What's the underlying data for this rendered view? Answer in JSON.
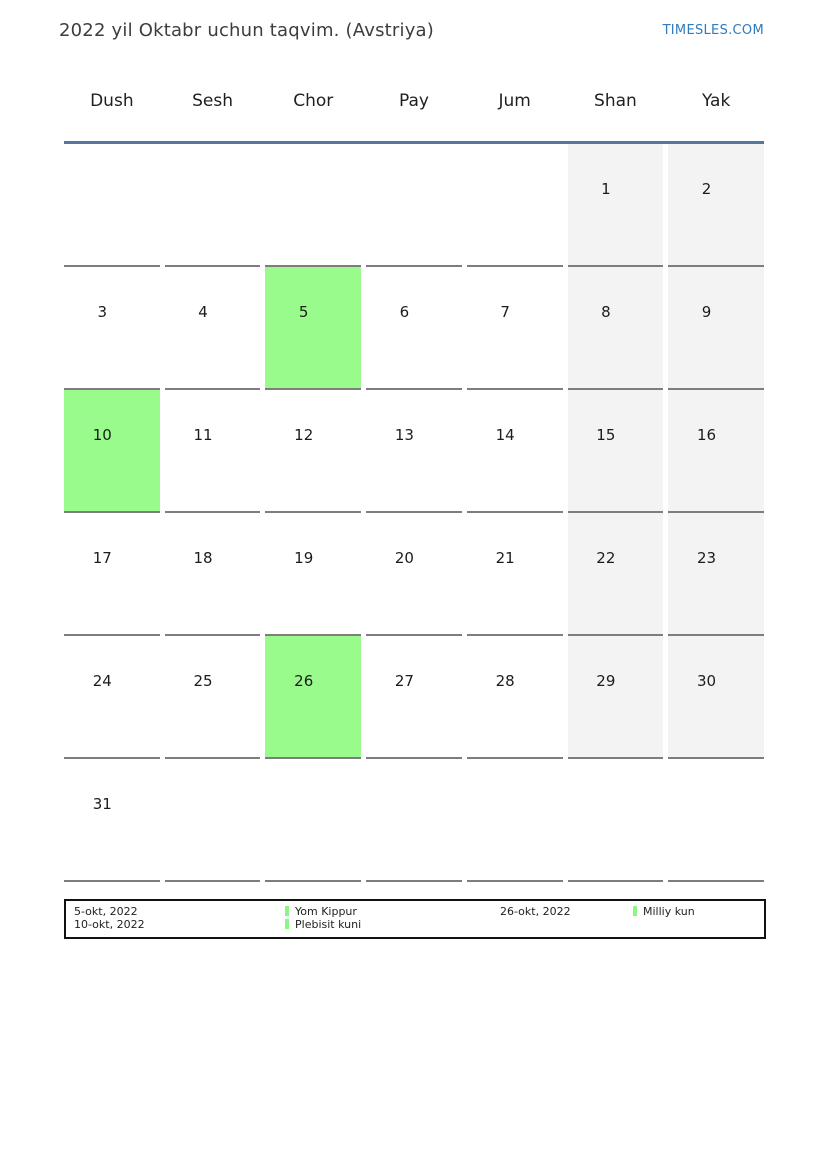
{
  "page": {
    "title": "2022 yil Oktabr uchun taqvim. (Avstriya)",
    "site_link": "TIMESLES.COM"
  },
  "calendar": {
    "weekdays": [
      "Dush",
      "Sesh",
      "Chor",
      "Pay",
      "Jum",
      "Shan",
      "Yak"
    ],
    "weeks": [
      [
        "",
        "",
        "",
        "",
        "",
        "1",
        "2"
      ],
      [
        "3",
        "4",
        "5",
        "6",
        "7",
        "8",
        "9"
      ],
      [
        "10",
        "11",
        "12",
        "13",
        "14",
        "15",
        "16"
      ],
      [
        "17",
        "18",
        "19",
        "20",
        "21",
        "22",
        "23"
      ],
      [
        "24",
        "25",
        "26",
        "27",
        "28",
        "29",
        "30"
      ],
      [
        "31",
        "",
        "",
        "",
        "",
        "",
        ""
      ]
    ],
    "highlighted_days": [
      "5",
      "10",
      "26"
    ],
    "weekend_columns": [
      "Shan",
      "Yak"
    ],
    "colors": {
      "highlight_green": "#98fb8c",
      "weekend_gray": "#f3f3f3",
      "header_line_blue": "#54779e",
      "cell_line_gray": "#7d7d7d",
      "link_blue": "#2e7bbd"
    }
  },
  "legend": {
    "group1": {
      "date1": "5-okt, 2022",
      "date2": "10-okt, 2022",
      "label1": "Yom Kippur",
      "label2": "Plebisit kuni"
    },
    "group2": {
      "date1": "26-okt, 2022",
      "label1": "Milliy kun"
    }
  }
}
